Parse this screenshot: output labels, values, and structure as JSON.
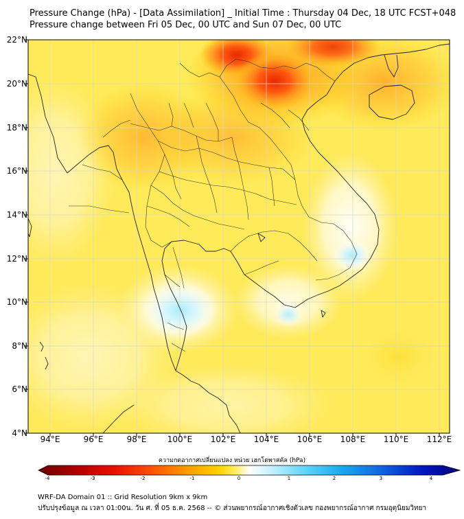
{
  "header": {
    "line1": "Pressure Change (hPa) - [Data Assimilation] _ Initial Time : Thursday 04 Dec, 18 UTC FCST+048",
    "line2": "Pressure change between Fri 05 Dec, 00 UTC and Sun 07 Dec, 00 UTC"
  },
  "axes": {
    "lat_labels": [
      "22°N",
      "20°N",
      "18°N",
      "16°N",
      "14°N",
      "12°N",
      "10°N",
      "8°N",
      "6°N",
      "4°N"
    ],
    "lon_labels": [
      "94°E",
      "96°E",
      "98°E",
      "100°E",
      "102°E",
      "104°E",
      "106°E",
      "108°E",
      "110°E",
      "112°E"
    ]
  },
  "colorbar": {
    "title": "ความกดอากาศเปลี่ยนแปลง หน่วย เฮกโตพาสคัล (hPa)",
    "ticks": [
      "-4",
      "-3",
      "-2",
      "-1",
      "0",
      "1",
      "2",
      "3",
      "4"
    ],
    "colors": [
      "#6b0000",
      "#b00000",
      "#e81000",
      "#ff5a00",
      "#ffa000",
      "#ffd400",
      "#fff066",
      "#ffffff",
      "#c8f2ff",
      "#60d8f8",
      "#18a8f0",
      "#1060e0",
      "#0018c0",
      "#000080"
    ]
  },
  "footer": {
    "line1": "WRF-DA Domain 01 :: Grid Resolution 9km x 9km",
    "line2": "ปรับปรุงข้อมูล ณ เวลา 01:00น. วัน ศ. ที่ 05 ธ.ค. 2568 -- © ส่วนพยากรณ์อากาศเชิงตัวเลข กองพยากรณ์อากาศ กรมอุตุนิยมวิทยา"
  }
}
